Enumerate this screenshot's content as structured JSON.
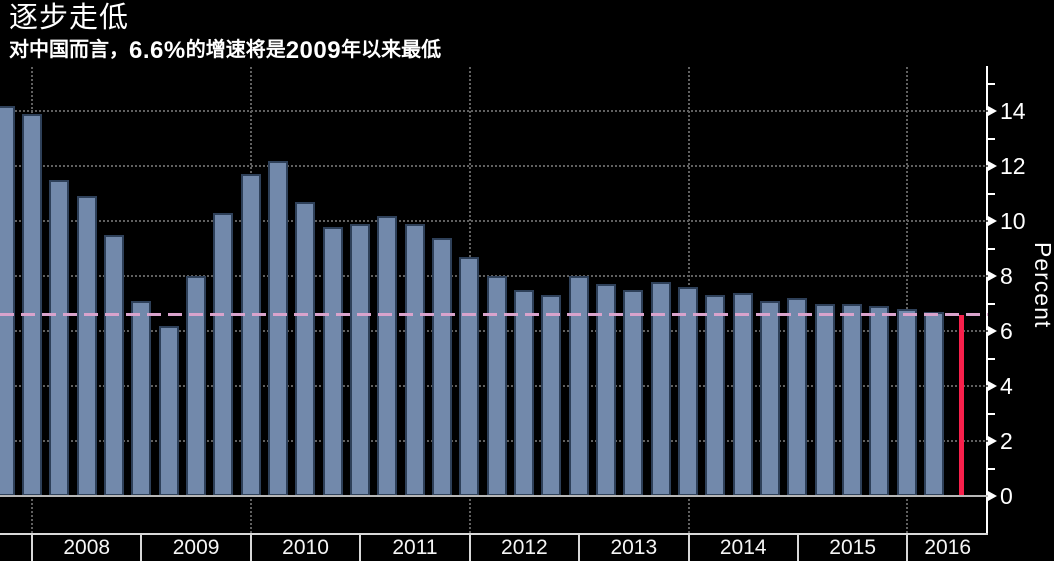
{
  "header": {
    "title": "逐步走低",
    "subtitle_parts": {
      "p1": "对中国而言，",
      "n1": "6.6%",
      "p2": "的增速将是",
      "n2": "2009",
      "p3": "年以来最低"
    }
  },
  "chart_data": {
    "type": "bar",
    "title": "逐步走低",
    "subtitle": "对中国而言，6.6%的增速将是2009年以来最低",
    "ylabel": "Percent",
    "ylim": [
      0,
      15.5
    ],
    "grid": "dotted",
    "legend": "none",
    "y_axis_side": "right",
    "y_ticks": [
      0,
      2,
      4,
      6,
      8,
      10,
      12,
      14
    ],
    "y_minor_ticks": [
      1,
      3,
      5,
      7,
      9,
      11,
      13,
      15
    ],
    "x_year_labels": [
      "2008",
      "2009",
      "2010",
      "2011",
      "2012",
      "2013",
      "2014",
      "2015",
      "2016"
    ],
    "quarters": [
      "2007 Q3",
      "2007 Q4",
      "2008 Q1",
      "2008 Q2",
      "2008 Q3",
      "2008 Q4",
      "2009 Q1",
      "2009 Q2",
      "2009 Q3",
      "2009 Q4",
      "2010 Q1",
      "2010 Q2",
      "2010 Q3",
      "2010 Q4",
      "2011 Q1",
      "2011 Q2",
      "2011 Q3",
      "2011 Q4",
      "2012 Q1",
      "2012 Q2",
      "2012 Q3",
      "2012 Q4",
      "2013 Q1",
      "2013 Q2",
      "2013 Q3",
      "2013 Q4",
      "2014 Q1",
      "2014 Q2",
      "2014 Q3",
      "2014 Q4",
      "2015 Q1",
      "2015 Q2",
      "2015 Q3",
      "2015 Q4",
      "2016 Q1",
      "2016 Q2"
    ],
    "values": [
      14.2,
      13.9,
      11.5,
      10.9,
      9.5,
      7.1,
      6.2,
      8.0,
      10.3,
      11.7,
      12.2,
      10.7,
      9.8,
      9.9,
      10.2,
      9.9,
      9.4,
      8.7,
      8.0,
      7.5,
      7.3,
      8.0,
      7.7,
      7.5,
      7.8,
      7.6,
      7.3,
      7.4,
      7.1,
      7.2,
      7.0,
      7.0,
      6.9,
      6.8,
      6.7,
      6.6
    ],
    "forecast_index": 35,
    "reference_line": {
      "value": 6.6,
      "style": "dashed"
    }
  },
  "colors": {
    "background": "#000000",
    "bar": "#7289ab",
    "bar_border": "#2e4059",
    "forecast_bar": "#f8204b",
    "reference_line": "#d9a3cc",
    "grid": "#606060",
    "baseline": "#b8b8b8",
    "axis_row": "#d9d9d9",
    "text": "#ffffff"
  }
}
